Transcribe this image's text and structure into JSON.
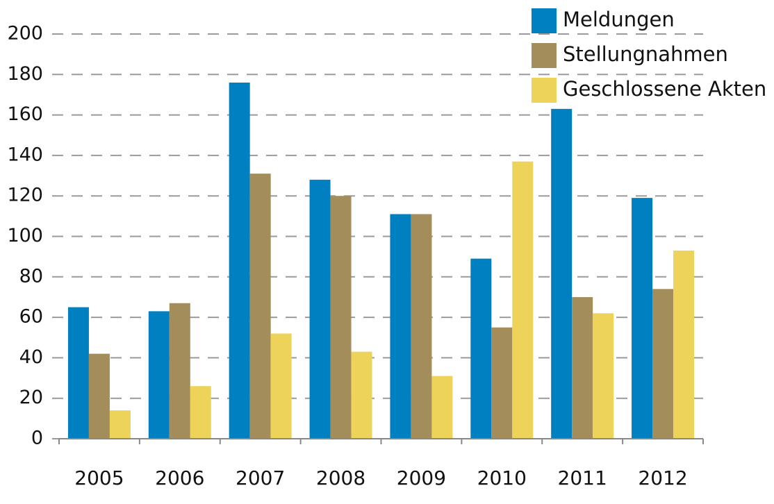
{
  "chart_data": {
    "type": "bar",
    "categories": [
      "2005",
      "2006",
      "2007",
      "2008",
      "2009",
      "2010",
      "2011",
      "2012"
    ],
    "series": [
      {
        "name": "Meldungen",
        "color": "#0080c0",
        "values": [
          65,
          63,
          176,
          128,
          111,
          89,
          163,
          119
        ]
      },
      {
        "name": "Stellungnahmen",
        "color": "#a38e5b",
        "values": [
          42,
          67,
          131,
          120,
          111,
          55,
          70,
          74
        ]
      },
      {
        "name": "Geschlossene Akten",
        "color": "#edd35a",
        "values": [
          14,
          26,
          52,
          43,
          31,
          137,
          62,
          93
        ]
      }
    ],
    "ylim": [
      0,
      200
    ],
    "yticks": [
      0,
      20,
      40,
      60,
      80,
      100,
      120,
      140,
      160,
      180,
      200
    ],
    "grid": true,
    "legend": "top-right"
  }
}
